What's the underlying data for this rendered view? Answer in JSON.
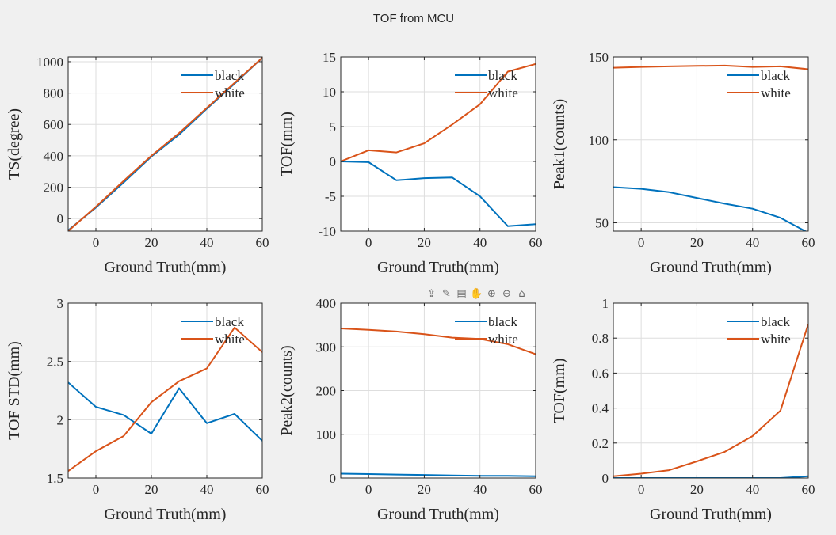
{
  "figure": {
    "title": "TOF from MCU",
    "toolbar_icons": [
      "export-icon",
      "brush-icon",
      "data-tips-icon",
      "pan-icon",
      "zoom-in-icon",
      "zoom-out-icon",
      "home-icon"
    ],
    "toolbar_glyphs": [
      "⇪",
      "✎",
      "▤",
      "✋",
      "⊕",
      "⊖",
      "⌂"
    ]
  },
  "colors": {
    "black_series": "#0072bd",
    "white_series": "#d95319"
  },
  "chart_data": [
    {
      "type": "line",
      "title": "",
      "xlabel": "Ground Truth(mm)",
      "ylabel": "TS(degree)",
      "xlim": [
        -10,
        60
      ],
      "ylim": [
        -80,
        1030
      ],
      "xticks": [
        0,
        20,
        40,
        60
      ],
      "yticks": [
        0,
        200,
        400,
        600,
        800,
        1000
      ],
      "grid": true,
      "legend": "top-right",
      "x": [
        -10,
        0,
        10,
        20,
        30,
        40,
        50,
        60
      ],
      "series": [
        {
          "name": "black",
          "values": [
            -75,
            70,
            230,
            395,
            535,
            700,
            860,
            1025
          ]
        },
        {
          "name": "white",
          "values": [
            -80,
            75,
            240,
            400,
            545,
            705,
            865,
            1025
          ]
        }
      ]
    },
    {
      "type": "line",
      "title": "",
      "xlabel": "Ground Truth(mm)",
      "ylabel": "TOF(mm)",
      "xlim": [
        -10,
        60
      ],
      "ylim": [
        -10,
        15
      ],
      "xticks": [
        0,
        20,
        40,
        60
      ],
      "yticks": [
        -10,
        -5,
        0,
        5,
        10,
        15
      ],
      "grid": true,
      "legend": "top-right",
      "x": [
        -10,
        0,
        10,
        20,
        30,
        40,
        50,
        60
      ],
      "series": [
        {
          "name": "black",
          "values": [
            0,
            -0.1,
            -2.7,
            -2.4,
            -2.3,
            -5.0,
            -9.3,
            -9.0
          ]
        },
        {
          "name": "white",
          "values": [
            0,
            1.6,
            1.3,
            2.6,
            5.3,
            8.2,
            12.9,
            14.0
          ]
        }
      ]
    },
    {
      "type": "line",
      "title": "",
      "xlabel": "Ground Truth(mm)",
      "ylabel": "Peak1(counts)",
      "xlim": [
        -10,
        60
      ],
      "ylim": [
        45,
        150
      ],
      "xticks": [
        0,
        20,
        40,
        60
      ],
      "yticks": [
        50,
        100,
        150
      ],
      "grid": true,
      "legend": "top-right",
      "x": [
        -10,
        0,
        10,
        20,
        30,
        40,
        50,
        60
      ],
      "series": [
        {
          "name": "black",
          "values": [
            71.5,
            70.5,
            68.5,
            65,
            61.5,
            58.5,
            53,
            44
          ]
        },
        {
          "name": "white",
          "values": [
            143.5,
            144,
            144.3,
            144.6,
            144.8,
            144,
            144.3,
            142.6
          ]
        }
      ]
    },
    {
      "type": "line",
      "title": "",
      "xlabel": "Ground Truth(mm)",
      "ylabel": "TOF STD(mm)",
      "xlim": [
        -10,
        60
      ],
      "ylim": [
        1.5,
        3
      ],
      "xticks": [
        0,
        20,
        40,
        60
      ],
      "yticks": [
        1.5,
        2,
        2.5,
        3
      ],
      "grid": true,
      "legend": "top-right",
      "x": [
        -10,
        0,
        10,
        20,
        30,
        40,
        50,
        60
      ],
      "series": [
        {
          "name": "black",
          "values": [
            2.32,
            2.11,
            2.04,
            1.88,
            2.27,
            1.97,
            2.05,
            1.82
          ]
        },
        {
          "name": "white",
          "values": [
            1.56,
            1.73,
            1.86,
            2.15,
            2.33,
            2.44,
            2.79,
            2.58
          ]
        }
      ]
    },
    {
      "type": "line",
      "title": "",
      "xlabel": "Ground Truth(mm)",
      "ylabel": "Peak2(counts)",
      "xlim": [
        -10,
        60
      ],
      "ylim": [
        0,
        400
      ],
      "xticks": [
        0,
        20,
        40,
        60
      ],
      "yticks": [
        0,
        100,
        200,
        300,
        400
      ],
      "grid": true,
      "legend": "top-right",
      "x": [
        -10,
        0,
        10,
        20,
        30,
        40,
        50,
        60
      ],
      "series": [
        {
          "name": "black",
          "values": [
            10,
            9,
            8,
            7,
            6,
            5,
            5,
            4
          ]
        },
        {
          "name": "white",
          "values": [
            342,
            339,
            335,
            329,
            321,
            318,
            306,
            283
          ]
        }
      ]
    },
    {
      "type": "line",
      "title": "",
      "xlabel": "Ground Truth(mm)",
      "ylabel": "TOF(mm)",
      "xlim": [
        -10,
        60
      ],
      "ylim": [
        0,
        1
      ],
      "xticks": [
        0,
        20,
        40,
        60
      ],
      "yticks": [
        0,
        0.2,
        0.4,
        0.6,
        0.8,
        1
      ],
      "grid": true,
      "legend": "top-right",
      "x": [
        -10,
        0,
        10,
        20,
        30,
        40,
        50,
        60
      ],
      "series": [
        {
          "name": "black",
          "values": [
            0,
            0,
            0,
            0,
            0,
            0,
            0,
            0.01
          ]
        },
        {
          "name": "white",
          "values": [
            0.01,
            0.025,
            0.045,
            0.095,
            0.15,
            0.24,
            0.385,
            0.88
          ]
        }
      ]
    }
  ]
}
